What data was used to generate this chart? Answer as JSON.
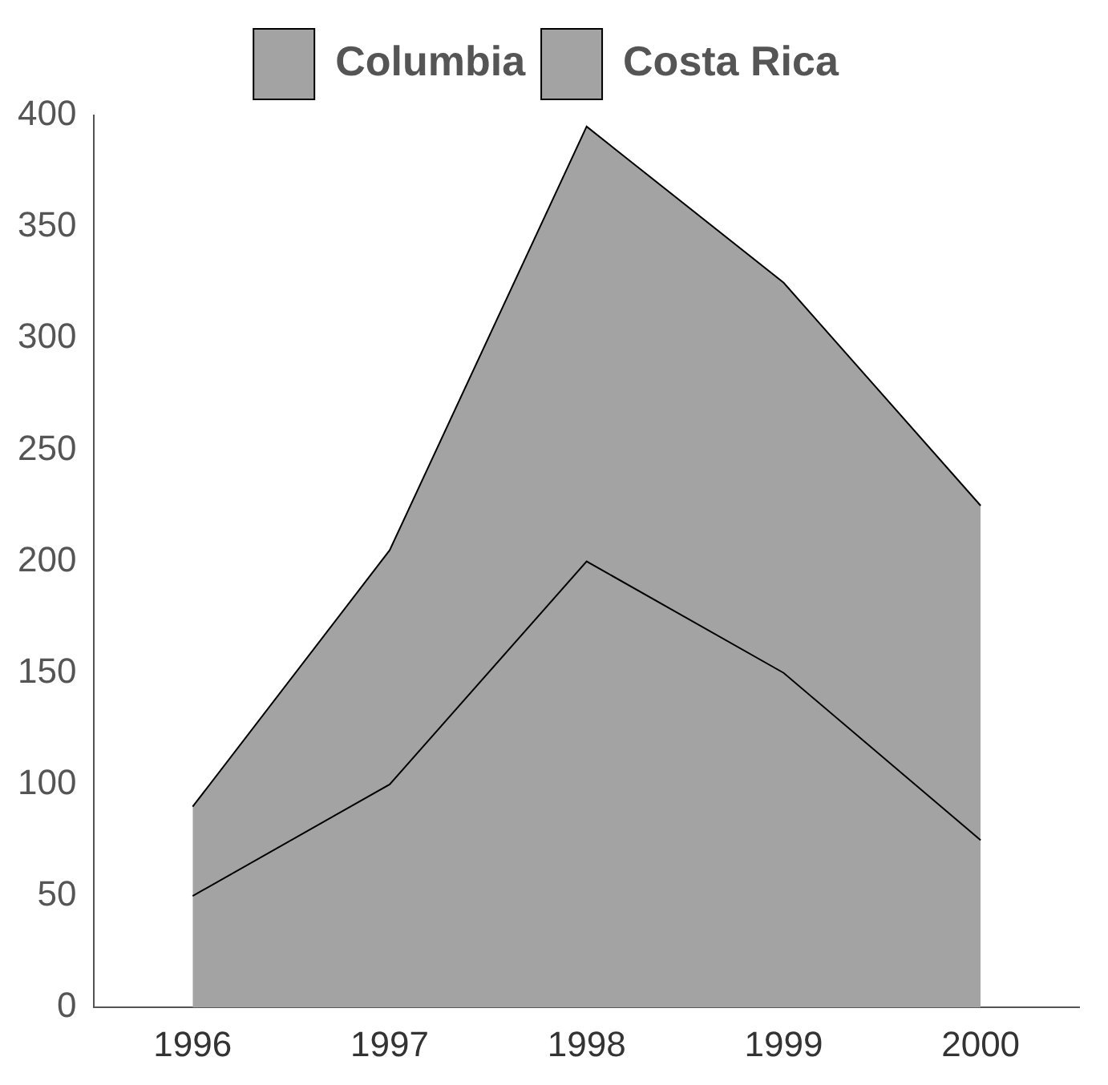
{
  "chart_data": {
    "type": "area",
    "stacked": true,
    "categories": [
      "1996",
      "1997",
      "1998",
      "1999",
      "2000"
    ],
    "series": [
      {
        "name": "Columbia",
        "color": "#a3a3a3",
        "values": [
          50,
          100,
          200,
          150,
          75
        ]
      },
      {
        "name": "Costa Rica",
        "color": "#a3a3a3",
        "values": [
          40,
          105,
          195,
          175,
          150
        ]
      }
    ],
    "ylim": [
      0,
      400
    ],
    "yticks": [
      0,
      50,
      100,
      150,
      200,
      250,
      300,
      350,
      400
    ],
    "grid": false,
    "legend": "top"
  }
}
